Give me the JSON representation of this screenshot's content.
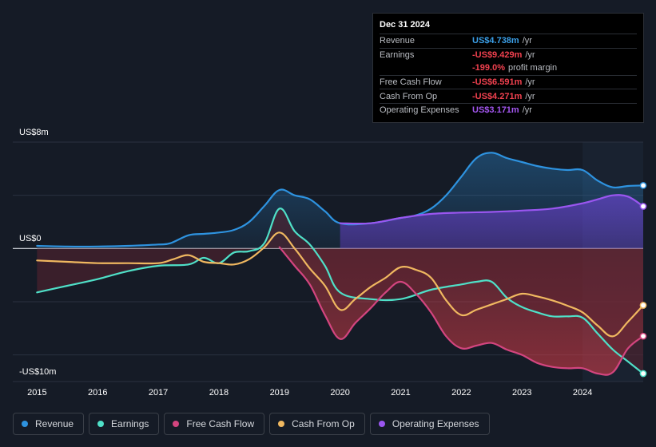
{
  "tooltip": {
    "date": "Dec 31 2024",
    "rows": [
      {
        "label": "Revenue",
        "value": "US$4.738m",
        "unit": "/yr",
        "color": "#3b9fe8"
      },
      {
        "label": "Earnings",
        "value": "-US$9.429m",
        "unit": "/yr",
        "color": "#f1414f"
      },
      {
        "label": "",
        "value": "-199.0%",
        "unit": "profit margin",
        "color": "#f1414f"
      },
      {
        "label": "Free Cash Flow",
        "value": "-US$6.591m",
        "unit": "/yr",
        "color": "#f1414f"
      },
      {
        "label": "Cash From Op",
        "value": "-US$4.271m",
        "unit": "/yr",
        "color": "#f1414f"
      },
      {
        "label": "Operating Expenses",
        "value": "US$3.171m",
        "unit": "/yr",
        "color": "#a557f2"
      }
    ]
  },
  "legend": [
    {
      "label": "Revenue",
      "color": "#2e93e0"
    },
    {
      "label": "Earnings",
      "color": "#4fe0c8"
    },
    {
      "label": "Free Cash Flow",
      "color": "#d3457f"
    },
    {
      "label": "Cash From Op",
      "color": "#f0b860"
    },
    {
      "label": "Operating Expenses",
      "color": "#9a56f0"
    }
  ],
  "chart_data": {
    "type": "line",
    "title": "",
    "xlabel": "",
    "ylabel": "",
    "ylim": [
      -10,
      8
    ],
    "y_tick_labels": [
      "US$8m",
      "US$0",
      "-US$10m"
    ],
    "y_ticks": [
      8,
      0,
      -10
    ],
    "x_tick_labels": [
      "2015",
      "2016",
      "2017",
      "2018",
      "2019",
      "2020",
      "2021",
      "2022",
      "2023",
      "2024"
    ],
    "x_ticks": [
      2015,
      2016,
      2017,
      2018,
      2019,
      2020,
      2021,
      2022,
      2023,
      2024
    ],
    "xlim": [
      2014.6,
      2025.0
    ],
    "forecast_start": 2024.0,
    "series": [
      {
        "name": "Revenue",
        "color": "#2e93e0",
        "x": [
          2015.0,
          2015.5,
          2016.0,
          2016.5,
          2017.0,
          2017.2,
          2017.5,
          2017.75,
          2018.0,
          2018.25,
          2018.5,
          2018.75,
          2019.0,
          2019.25,
          2019.5,
          2019.75,
          2020.0,
          2020.5,
          2021.0,
          2021.25,
          2021.5,
          2021.75,
          2022.0,
          2022.25,
          2022.5,
          2022.75,
          2023.0,
          2023.25,
          2023.5,
          2023.75,
          2024.0,
          2024.25,
          2024.5,
          2024.75,
          2025.0
        ],
        "y": [
          0.2,
          0.15,
          0.15,
          0.2,
          0.3,
          0.4,
          1.0,
          1.1,
          1.2,
          1.4,
          2.0,
          3.2,
          4.4,
          4.0,
          3.7,
          2.8,
          1.9,
          1.9,
          2.3,
          2.5,
          3.0,
          4.0,
          5.4,
          6.8,
          7.2,
          6.8,
          6.5,
          6.2,
          6.0,
          5.9,
          5.9,
          5.1,
          4.6,
          4.7,
          4.74
        ]
      },
      {
        "name": "Earnings",
        "color": "#4fe0c8",
        "x": [
          2015.0,
          2015.5,
          2016.0,
          2016.5,
          2017.0,
          2017.5,
          2017.75,
          2018.0,
          2018.25,
          2018.5,
          2018.75,
          2019.0,
          2019.25,
          2019.5,
          2019.75,
          2020.0,
          2020.5,
          2021.0,
          2021.5,
          2022.0,
          2022.25,
          2022.5,
          2022.75,
          2023.0,
          2023.25,
          2023.5,
          2023.75,
          2024.0,
          2024.25,
          2024.5,
          2024.75,
          2025.0
        ],
        "y": [
          -3.3,
          -2.8,
          -2.3,
          -1.7,
          -1.3,
          -1.2,
          -0.7,
          -1.1,
          -0.3,
          -0.2,
          0.4,
          3.0,
          1.3,
          0.3,
          -1.3,
          -3.3,
          -3.8,
          -3.8,
          -3.1,
          -2.7,
          -2.5,
          -2.5,
          -3.7,
          -4.4,
          -4.8,
          -5.1,
          -5.1,
          -5.2,
          -6.4,
          -7.6,
          -8.5,
          -9.4
        ]
      },
      {
        "name": "Free Cash Flow",
        "color": "#d3457f",
        "x": [
          2019.0,
          2019.25,
          2019.5,
          2019.75,
          2020.0,
          2020.25,
          2020.5,
          2020.75,
          2021.0,
          2021.25,
          2021.5,
          2021.75,
          2022.0,
          2022.25,
          2022.5,
          2022.75,
          2023.0,
          2023.25,
          2023.5,
          2023.75,
          2024.0,
          2024.25,
          2024.5,
          2024.75,
          2025.0
        ],
        "y": [
          0.1,
          -1.3,
          -2.7,
          -5.0,
          -6.8,
          -5.6,
          -4.5,
          -3.3,
          -2.5,
          -3.4,
          -4.8,
          -6.6,
          -7.5,
          -7.3,
          -7.1,
          -7.6,
          -8.0,
          -8.6,
          -8.9,
          -9.0,
          -9.0,
          -9.4,
          -9.3,
          -7.5,
          -6.59
        ]
      },
      {
        "name": "Cash From Op",
        "color": "#f0b860",
        "x": [
          2015.0,
          2015.5,
          2016.0,
          2016.5,
          2017.0,
          2017.25,
          2017.5,
          2017.75,
          2018.0,
          2018.25,
          2018.5,
          2018.75,
          2019.0,
          2019.25,
          2019.5,
          2019.75,
          2020.0,
          2020.25,
          2020.5,
          2020.75,
          2021.0,
          2021.25,
          2021.5,
          2021.75,
          2022.0,
          2022.25,
          2022.5,
          2022.75,
          2023.0,
          2023.25,
          2023.5,
          2023.75,
          2024.0,
          2024.25,
          2024.5,
          2024.75,
          2025.0
        ],
        "y": [
          -0.9,
          -1.0,
          -1.1,
          -1.1,
          -1.1,
          -0.8,
          -0.5,
          -1.0,
          -1.1,
          -1.2,
          -0.8,
          0.1,
          1.2,
          0.0,
          -1.5,
          -2.8,
          -4.6,
          -3.8,
          -2.9,
          -2.2,
          -1.4,
          -1.6,
          -2.2,
          -3.9,
          -5.0,
          -4.6,
          -4.2,
          -3.8,
          -3.4,
          -3.6,
          -3.9,
          -4.3,
          -4.8,
          -5.8,
          -6.6,
          -5.5,
          -4.27
        ]
      },
      {
        "name": "Operating Expenses",
        "color": "#9a56f0",
        "x": [
          2020.0,
          2020.5,
          2021.0,
          2021.5,
          2022.0,
          2022.5,
          2023.0,
          2023.5,
          2024.0,
          2024.25,
          2024.5,
          2024.75,
          2025.0
        ],
        "y": [
          1.9,
          1.9,
          2.3,
          2.6,
          2.7,
          2.75,
          2.85,
          3.0,
          3.4,
          3.7,
          4.0,
          3.9,
          3.17
        ]
      }
    ]
  }
}
